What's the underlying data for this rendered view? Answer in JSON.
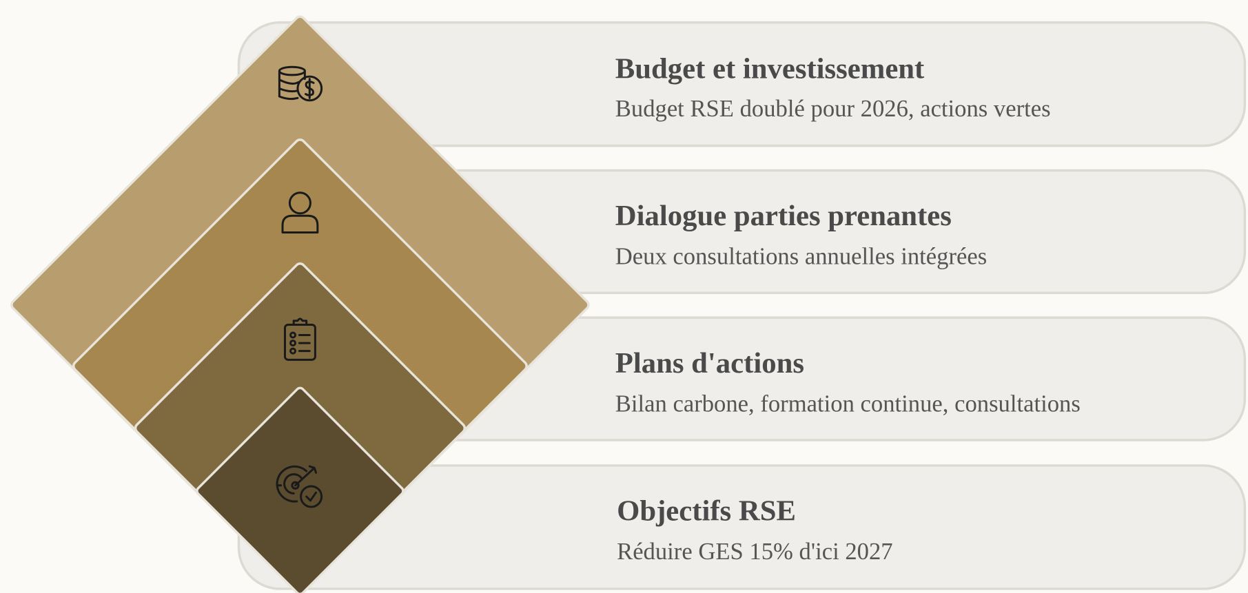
{
  "items": [
    {
      "title": "Budget et investissement",
      "description": "Budget RSE doublé pour 2026, actions vertes"
    },
    {
      "title": "Dialogue parties prenantes",
      "description": "Deux consultations annuelles intégrées"
    },
    {
      "title": "Plans d'actions",
      "description": "Bilan carbone, formation continue, consultations"
    },
    {
      "title": "Objectifs RSE",
      "description": "Réduire GES 15% d'ici 2027"
    }
  ]
}
